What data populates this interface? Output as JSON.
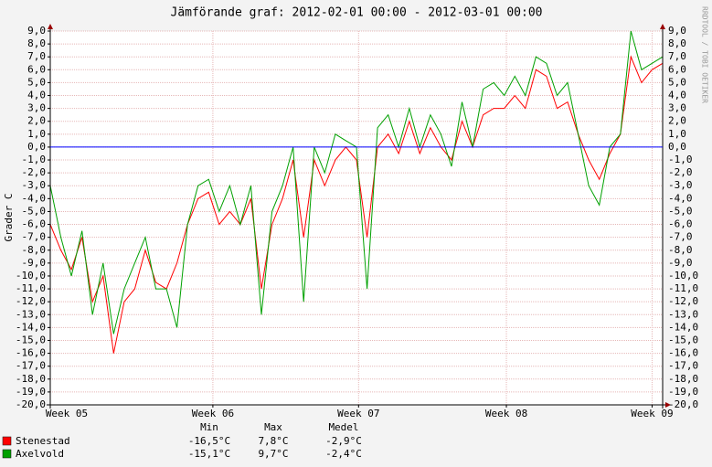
{
  "chart_data": {
    "type": "line",
    "title": "Jämförande graf: 2012-02-01 00:00 - 2012-03-01 00:00",
    "y_label": "Grader C",
    "watermark": "RRDTOOL / TOBI OETIKER",
    "x": [
      0,
      0.5,
      1,
      1.5,
      2,
      2.5,
      3,
      3.5,
      4,
      4.5,
      5,
      5.5,
      6,
      6.5,
      7,
      7.5,
      8,
      8.5,
      9,
      9.5,
      10,
      10.5,
      11,
      11.5,
      12,
      12.5,
      13,
      13.5,
      14,
      14.5,
      15,
      15.5,
      16,
      16.5,
      17,
      17.5,
      18,
      18.5,
      19,
      19.5,
      20,
      20.5,
      21,
      21.5,
      22,
      22.5,
      23,
      23.5,
      24,
      24.5,
      25,
      25.5,
      26,
      26.5,
      27,
      27.5,
      28,
      28.5,
      29
    ],
    "xlim": [
      0,
      29
    ],
    "xticks": [
      {
        "value": 0,
        "label": "Week 05"
      },
      {
        "value": 7.7,
        "label": "Week 06"
      },
      {
        "value": 14.6,
        "label": "Week 07"
      },
      {
        "value": 21.6,
        "label": "Week 08"
      },
      {
        "value": 28.5,
        "label": "Week 09"
      }
    ],
    "ylim": [
      -20,
      9
    ],
    "yticks": [
      {
        "value": 9,
        "label": "9,0"
      },
      {
        "value": 8,
        "label": "8,0"
      },
      {
        "value": 7,
        "label": "7,0"
      },
      {
        "value": 6,
        "label": "6,0"
      },
      {
        "value": 5,
        "label": "5,0"
      },
      {
        "value": 4,
        "label": "4,0"
      },
      {
        "value": 3,
        "label": "3,0"
      },
      {
        "value": 2,
        "label": "2,0"
      },
      {
        "value": 1,
        "label": "1,0"
      },
      {
        "value": 0,
        "label": "0,0"
      },
      {
        "value": -1,
        "label": "-1,0"
      },
      {
        "value": -2,
        "label": "-2,0"
      },
      {
        "value": -3,
        "label": "-3,0"
      },
      {
        "value": -4,
        "label": "-4,0"
      },
      {
        "value": -5,
        "label": "-5,0"
      },
      {
        "value": -6,
        "label": "-6,0"
      },
      {
        "value": -7,
        "label": "-7,0"
      },
      {
        "value": -8,
        "label": "-8,0"
      },
      {
        "value": -9,
        "label": "-9,0"
      },
      {
        "value": -10,
        "label": "-10,0"
      },
      {
        "value": -11,
        "label": "-11,0"
      },
      {
        "value": -12,
        "label": "-12,0"
      },
      {
        "value": -13,
        "label": "-13,0"
      },
      {
        "value": -14,
        "label": "-14,0"
      },
      {
        "value": -15,
        "label": "-15,0"
      },
      {
        "value": -16,
        "label": "-16,0"
      },
      {
        "value": -17,
        "label": "-17,0"
      },
      {
        "value": -18,
        "label": "-18,0"
      },
      {
        "value": -19,
        "label": "-19,0"
      },
      {
        "value": -20,
        "label": "-20,0"
      }
    ],
    "grid": true,
    "reference_line": {
      "value": 0,
      "color": "#0000ff"
    },
    "series": [
      {
        "name": "Stenestad",
        "color": "#ff0000",
        "values": [
          -6,
          -8,
          -9.5,
          -7,
          -12,
          -10,
          -16,
          -12,
          -11,
          -8,
          -10.5,
          -11,
          -9,
          -6,
          -4,
          -3.5,
          -6,
          -5,
          -6,
          -4,
          -11,
          -6,
          -4,
          -1,
          -7,
          -1,
          -3,
          -1,
          0,
          -1,
          -7,
          0,
          1,
          -0.5,
          2,
          -0.5,
          1.5,
          0,
          -1,
          2,
          0,
          2.5,
          3,
          3,
          4,
          3,
          6,
          5.5,
          3,
          3.5,
          1,
          -1,
          -2.5,
          -0.5,
          1,
          7,
          5,
          6,
          6.5
        ]
      },
      {
        "name": "Axelvold",
        "color": "#00a000",
        "values": [
          -3,
          -7,
          -10,
          -6.5,
          -13,
          -9,
          -14.5,
          -11,
          -9,
          -7,
          -11,
          -11,
          -14,
          -6,
          -3,
          -2.5,
          -5,
          -3,
          -6,
          -3,
          -13,
          -5,
          -3,
          0,
          -12,
          0,
          -2,
          1,
          0.5,
          0,
          -11,
          1.5,
          2.5,
          0,
          3,
          0,
          2.5,
          1,
          -1.5,
          3.5,
          0,
          4.5,
          5,
          4,
          5.5,
          4,
          7,
          6.5,
          4,
          5,
          1,
          -3,
          -4.5,
          0,
          1,
          9,
          6,
          6.5,
          7
        ]
      }
    ],
    "stats": {
      "headers": [
        "Min",
        "Max",
        "Medel"
      ],
      "rows": [
        [
          "-16,5°C",
          "7,8°C",
          "-2,9°C"
        ],
        [
          "-15,1°C",
          "9,7°C",
          "-2,4°C"
        ]
      ]
    }
  }
}
